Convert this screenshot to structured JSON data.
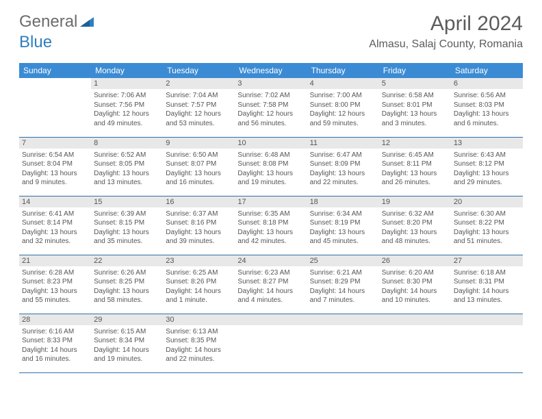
{
  "logo": {
    "text_gray": "General",
    "text_blue": "Blue"
  },
  "title": "April 2024",
  "location": "Almasu, Salaj County, Romania",
  "colors": {
    "header_bg": "#3b8bd4",
    "header_text": "#ffffff",
    "day_head_bg": "#e8e8e8",
    "border": "#2f6fa8",
    "body_text": "#555555",
    "title_text": "#5c5c5c",
    "logo_gray": "#6b6b6b",
    "logo_blue": "#2f7fbf"
  },
  "weekdays": [
    "Sunday",
    "Monday",
    "Tuesday",
    "Wednesday",
    "Thursday",
    "Friday",
    "Saturday"
  ],
  "weeks": [
    [
      null,
      {
        "d": "1",
        "s": "Sunrise: 7:06 AM",
        "u": "Sunset: 7:56 PM",
        "l1": "Daylight: 12 hours",
        "l2": "and 49 minutes."
      },
      {
        "d": "2",
        "s": "Sunrise: 7:04 AM",
        "u": "Sunset: 7:57 PM",
        "l1": "Daylight: 12 hours",
        "l2": "and 53 minutes."
      },
      {
        "d": "3",
        "s": "Sunrise: 7:02 AM",
        "u": "Sunset: 7:58 PM",
        "l1": "Daylight: 12 hours",
        "l2": "and 56 minutes."
      },
      {
        "d": "4",
        "s": "Sunrise: 7:00 AM",
        "u": "Sunset: 8:00 PM",
        "l1": "Daylight: 12 hours",
        "l2": "and 59 minutes."
      },
      {
        "d": "5",
        "s": "Sunrise: 6:58 AM",
        "u": "Sunset: 8:01 PM",
        "l1": "Daylight: 13 hours",
        "l2": "and 3 minutes."
      },
      {
        "d": "6",
        "s": "Sunrise: 6:56 AM",
        "u": "Sunset: 8:03 PM",
        "l1": "Daylight: 13 hours",
        "l2": "and 6 minutes."
      }
    ],
    [
      {
        "d": "7",
        "s": "Sunrise: 6:54 AM",
        "u": "Sunset: 8:04 PM",
        "l1": "Daylight: 13 hours",
        "l2": "and 9 minutes."
      },
      {
        "d": "8",
        "s": "Sunrise: 6:52 AM",
        "u": "Sunset: 8:05 PM",
        "l1": "Daylight: 13 hours",
        "l2": "and 13 minutes."
      },
      {
        "d": "9",
        "s": "Sunrise: 6:50 AM",
        "u": "Sunset: 8:07 PM",
        "l1": "Daylight: 13 hours",
        "l2": "and 16 minutes."
      },
      {
        "d": "10",
        "s": "Sunrise: 6:48 AM",
        "u": "Sunset: 8:08 PM",
        "l1": "Daylight: 13 hours",
        "l2": "and 19 minutes."
      },
      {
        "d": "11",
        "s": "Sunrise: 6:47 AM",
        "u": "Sunset: 8:09 PM",
        "l1": "Daylight: 13 hours",
        "l2": "and 22 minutes."
      },
      {
        "d": "12",
        "s": "Sunrise: 6:45 AM",
        "u": "Sunset: 8:11 PM",
        "l1": "Daylight: 13 hours",
        "l2": "and 26 minutes."
      },
      {
        "d": "13",
        "s": "Sunrise: 6:43 AM",
        "u": "Sunset: 8:12 PM",
        "l1": "Daylight: 13 hours",
        "l2": "and 29 minutes."
      }
    ],
    [
      {
        "d": "14",
        "s": "Sunrise: 6:41 AM",
        "u": "Sunset: 8:14 PM",
        "l1": "Daylight: 13 hours",
        "l2": "and 32 minutes."
      },
      {
        "d": "15",
        "s": "Sunrise: 6:39 AM",
        "u": "Sunset: 8:15 PM",
        "l1": "Daylight: 13 hours",
        "l2": "and 35 minutes."
      },
      {
        "d": "16",
        "s": "Sunrise: 6:37 AM",
        "u": "Sunset: 8:16 PM",
        "l1": "Daylight: 13 hours",
        "l2": "and 39 minutes."
      },
      {
        "d": "17",
        "s": "Sunrise: 6:35 AM",
        "u": "Sunset: 8:18 PM",
        "l1": "Daylight: 13 hours",
        "l2": "and 42 minutes."
      },
      {
        "d": "18",
        "s": "Sunrise: 6:34 AM",
        "u": "Sunset: 8:19 PM",
        "l1": "Daylight: 13 hours",
        "l2": "and 45 minutes."
      },
      {
        "d": "19",
        "s": "Sunrise: 6:32 AM",
        "u": "Sunset: 8:20 PM",
        "l1": "Daylight: 13 hours",
        "l2": "and 48 minutes."
      },
      {
        "d": "20",
        "s": "Sunrise: 6:30 AM",
        "u": "Sunset: 8:22 PM",
        "l1": "Daylight: 13 hours",
        "l2": "and 51 minutes."
      }
    ],
    [
      {
        "d": "21",
        "s": "Sunrise: 6:28 AM",
        "u": "Sunset: 8:23 PM",
        "l1": "Daylight: 13 hours",
        "l2": "and 55 minutes."
      },
      {
        "d": "22",
        "s": "Sunrise: 6:26 AM",
        "u": "Sunset: 8:25 PM",
        "l1": "Daylight: 13 hours",
        "l2": "and 58 minutes."
      },
      {
        "d": "23",
        "s": "Sunrise: 6:25 AM",
        "u": "Sunset: 8:26 PM",
        "l1": "Daylight: 14 hours",
        "l2": "and 1 minute."
      },
      {
        "d": "24",
        "s": "Sunrise: 6:23 AM",
        "u": "Sunset: 8:27 PM",
        "l1": "Daylight: 14 hours",
        "l2": "and 4 minutes."
      },
      {
        "d": "25",
        "s": "Sunrise: 6:21 AM",
        "u": "Sunset: 8:29 PM",
        "l1": "Daylight: 14 hours",
        "l2": "and 7 minutes."
      },
      {
        "d": "26",
        "s": "Sunrise: 6:20 AM",
        "u": "Sunset: 8:30 PM",
        "l1": "Daylight: 14 hours",
        "l2": "and 10 minutes."
      },
      {
        "d": "27",
        "s": "Sunrise: 6:18 AM",
        "u": "Sunset: 8:31 PM",
        "l1": "Daylight: 14 hours",
        "l2": "and 13 minutes."
      }
    ],
    [
      {
        "d": "28",
        "s": "Sunrise: 6:16 AM",
        "u": "Sunset: 8:33 PM",
        "l1": "Daylight: 14 hours",
        "l2": "and 16 minutes."
      },
      {
        "d": "29",
        "s": "Sunrise: 6:15 AM",
        "u": "Sunset: 8:34 PM",
        "l1": "Daylight: 14 hours",
        "l2": "and 19 minutes."
      },
      {
        "d": "30",
        "s": "Sunrise: 6:13 AM",
        "u": "Sunset: 8:35 PM",
        "l1": "Daylight: 14 hours",
        "l2": "and 22 minutes."
      },
      null,
      null,
      null,
      null
    ]
  ]
}
